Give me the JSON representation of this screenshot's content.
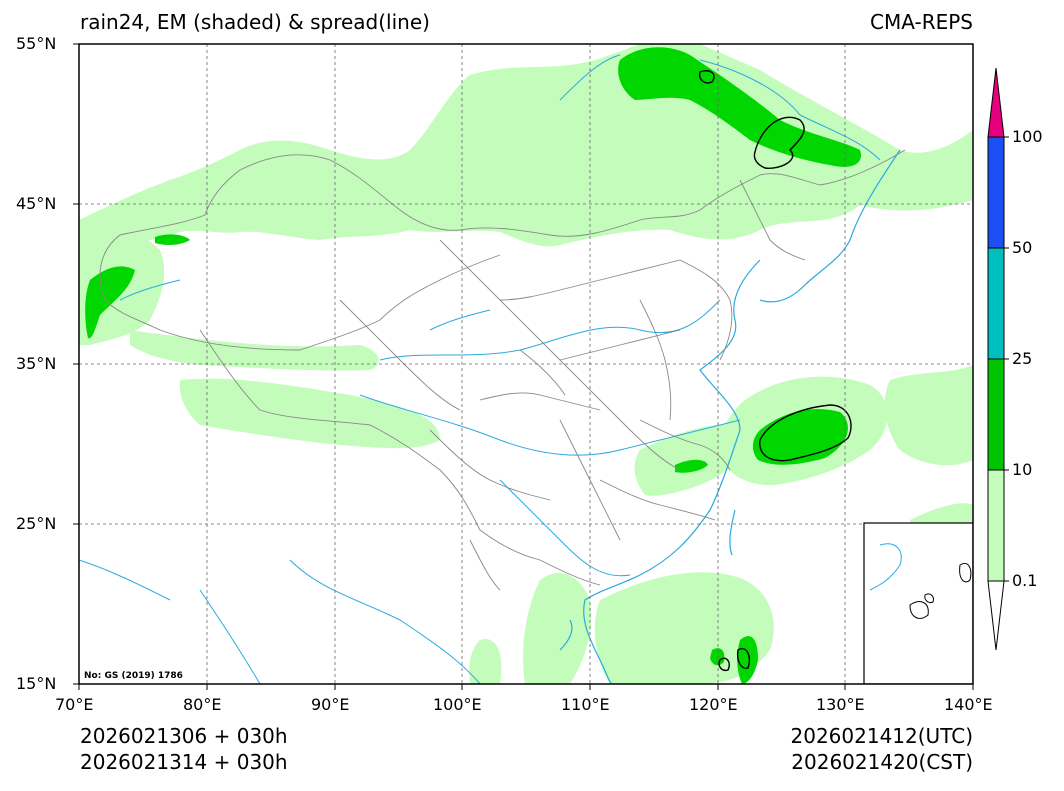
{
  "title": {
    "left": "rain24, EM (shaded) & spread(line)",
    "right": "CMA-REPS"
  },
  "map": {
    "lon_range": [
      70,
      140
    ],
    "lat_range": [
      15,
      55
    ],
    "lon_ticks": [
      "70°E",
      "80°E",
      "90°E",
      "100°E",
      "110°E",
      "120°E",
      "130°E",
      "140°E"
    ],
    "lat_ticks": [
      "55°N",
      "45°N",
      "35°N",
      "25°N",
      "15°N"
    ],
    "approval_stamp": "No: GS (2019) 1786",
    "colors": {
      "light_green": "#c4fcbc",
      "green": "#00d700",
      "teal": "#00bfbf",
      "blue": "#1c4ff4",
      "magenta": "#e6007e",
      "river": "#2aa9df",
      "border": "#888888"
    }
  },
  "colorbar": {
    "levels": [
      "0.1",
      "10",
      "25",
      "50",
      "100"
    ],
    "colors": [
      "#c4fcbc",
      "#00c400",
      "#00bfbf",
      "#1c4ff4"
    ]
  },
  "footer": {
    "init_utc": "2026021306  +  030h",
    "init_cst": "2026021314  +  030h",
    "valid_utc": "2026021412(UTC)",
    "valid_cst": "2026021420(CST)"
  }
}
